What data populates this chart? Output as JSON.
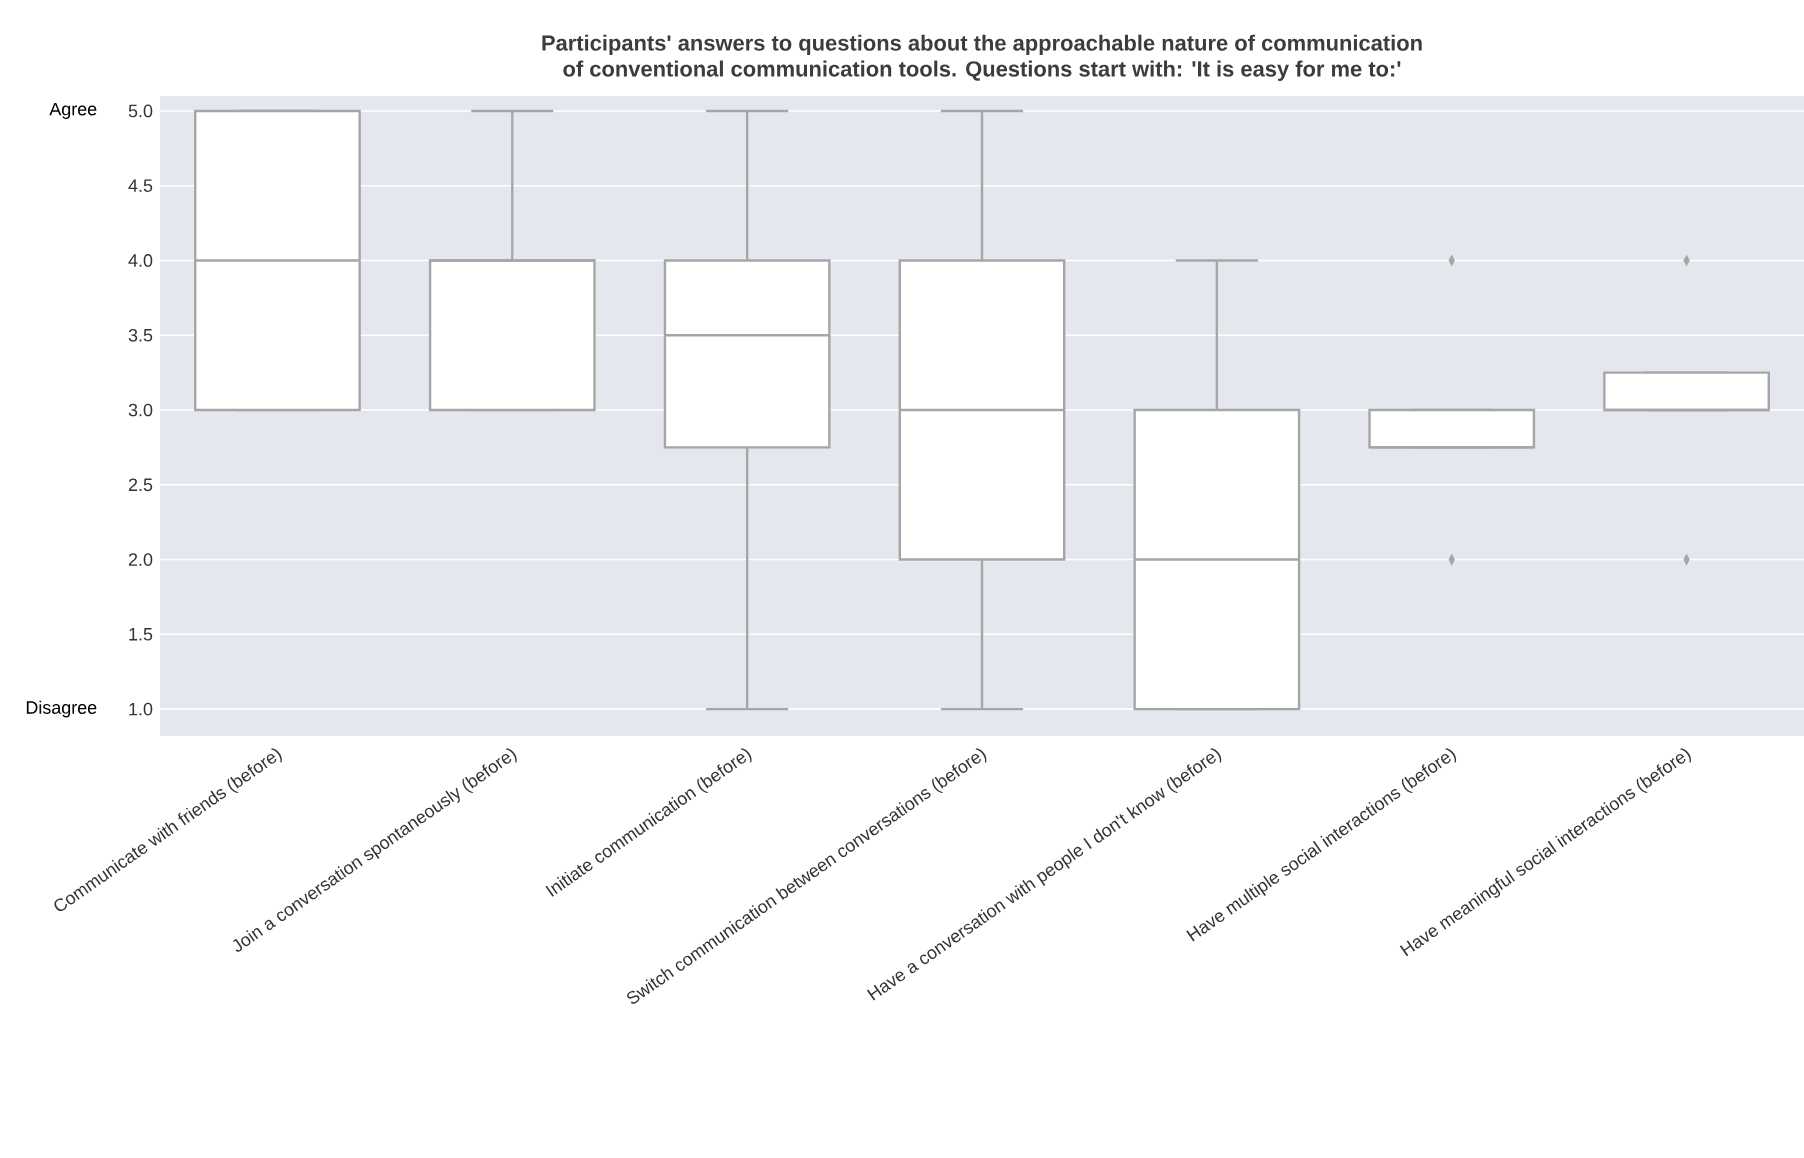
{
  "chart_data": {
    "type": "box",
    "title": "Participants' answers to questions about the approachable nature of communication\nof conventional communication tools. Questions start with: 'It is easy for me to:'",
    "categories": [
      "Communicate with friends (before)",
      "Join a conversation spontaneously (before)",
      "Initiate communication (before)",
      "Switch communication between conversations (before)",
      "Have a conversation with people I don't know (before)",
      "Have multiple social interactions (before)",
      "Have meaningful social interactions (before)"
    ],
    "series": [
      {
        "color": "#ffffff",
        "boxes": [
          {
            "low": 3,
            "q1": 3,
            "median": 4,
            "q3": 5,
            "high": 5
          },
          {
            "low": 3,
            "q1": 3,
            "median": 4,
            "q3": 4,
            "high": 5
          },
          {
            "low": 1,
            "q1": 2.75,
            "median": 3.5,
            "q3": 4,
            "high": 5
          },
          {
            "low": 1,
            "q1": 2,
            "median": 3,
            "q3": 4,
            "high": 5
          },
          {
            "low": 1,
            "q1": 1,
            "median": 2,
            "q3": 3,
            "high": 4
          },
          {
            "low": 2.75,
            "q1": 2.75,
            "median": 2.75,
            "q3": 3,
            "high": 3,
            "outliers": [
              4,
              2
            ]
          },
          {
            "low": 3,
            "q1": 3,
            "median": 3,
            "q3": 3.25,
            "high": 3.25,
            "outliers": [
              4,
              2
            ]
          }
        ]
      }
    ],
    "ylim": [
      0.82,
      5.1
    ],
    "yticks": [
      {
        "value": 1,
        "label": "1.0"
      },
      {
        "value": 1.5,
        "label": "1.5"
      },
      {
        "value": 2,
        "label": "2.0"
      },
      {
        "value": 2.5,
        "label": "2.5"
      },
      {
        "value": 3,
        "label": "3.0"
      },
      {
        "value": 3.5,
        "label": "3.5"
      },
      {
        "value": 4,
        "label": "4.0"
      },
      {
        "value": 4.5,
        "label": "4.5"
      },
      {
        "value": 5,
        "label": "5.0"
      }
    ],
    "grid": "y",
    "marker": "diamond",
    "annotations": [
      "Agree",
      "Disagree"
    ]
  }
}
